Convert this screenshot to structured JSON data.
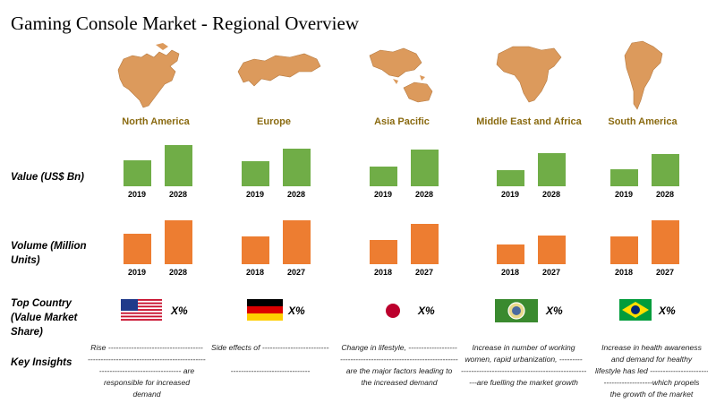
{
  "title": "Gaming Console Market - Regional Overview",
  "row_labels": {
    "value": "Value (US$ Bn)",
    "volume_line1": "Volume (Million",
    "volume_line2": "Units)",
    "top_line1": "Top Country",
    "top_line2": "(Value Market",
    "top_line3": "Share)",
    "insights": "Key Insights"
  },
  "colors": {
    "value_bar": "#70ad47",
    "volume_bar": "#ed7d31",
    "map": "#dc9a5c",
    "region_label": "#8a6a10"
  },
  "chart_data": [
    {
      "type": "bar",
      "name": "Value (US$ Bn)",
      "regions": [
        {
          "region": "North America",
          "categories": [
            "2019",
            "2028"
          ],
          "values": [
            24,
            38
          ]
        },
        {
          "region": "Europe",
          "categories": [
            "2019",
            "2028"
          ],
          "values": [
            23,
            35
          ]
        },
        {
          "region": "Asia Pacific",
          "categories": [
            "2019",
            "2028"
          ],
          "values": [
            18,
            34
          ]
        },
        {
          "region": "Middle East and Africa",
          "categories": [
            "2019",
            "2028"
          ],
          "values": [
            15,
            31
          ]
        },
        {
          "region": "South America",
          "categories": [
            "2019",
            "2028"
          ],
          "values": [
            16,
            30
          ]
        }
      ],
      "ylim": [
        0,
        40
      ]
    },
    {
      "type": "bar",
      "name": "Volume (Million Units)",
      "regions": [
        {
          "region": "North America",
          "categories": [
            "2019",
            "2028"
          ],
          "values": [
            26,
            38
          ]
        },
        {
          "region": "Europe",
          "categories": [
            "2018",
            "2027"
          ],
          "values": [
            24,
            38
          ]
        },
        {
          "region": "Asia Pacific",
          "categories": [
            "2018",
            "2027"
          ],
          "values": [
            21,
            35
          ]
        },
        {
          "region": "Middle East and Africa",
          "categories": [
            "2018",
            "2027"
          ],
          "values": [
            17,
            25
          ]
        },
        {
          "region": "South America",
          "categories": [
            "2018",
            "2027"
          ],
          "values": [
            24,
            38
          ]
        }
      ],
      "ylim": [
        0,
        40
      ]
    }
  ],
  "regions": [
    {
      "name": "North America",
      "flag": "us-flag-icon",
      "share": "X%",
      "insight": [
        "Rise -------------------------------------",
        "-------------------------------------------------",
        "-------------------------------- are",
        "responsible for increased",
        "demand"
      ]
    },
    {
      "name": "Europe",
      "flag": "germany-flag-icon",
      "share": "X%",
      "insight": [
        "Side effects of -----------------------------",
        "",
        "-------------------------------"
      ]
    },
    {
      "name": "Asia Pacific",
      "flag": "japan-flag-icon",
      "share": "X%",
      "insight": [
        "Change in lifestyle, -------------------",
        "-------------------------------------------------",
        "are the major factors leading to",
        "the increased demand"
      ]
    },
    {
      "name": "Middle East and Africa",
      "flag": "gcc-flag-icon",
      "share": "X%",
      "insight": [
        "Increase in number of working",
        "women, rapid urbanization, ---------",
        "-------------------------------------------------",
        "---are fuelling the market growth"
      ]
    },
    {
      "name": "South America",
      "flag": "brazil-flag-icon",
      "share": "X%",
      "insight": [
        "Increase in health awareness",
        "and demand for healthy",
        "lifestyle has led --------------------------",
        "-------------------which propels",
        "the growth of the market"
      ]
    }
  ]
}
